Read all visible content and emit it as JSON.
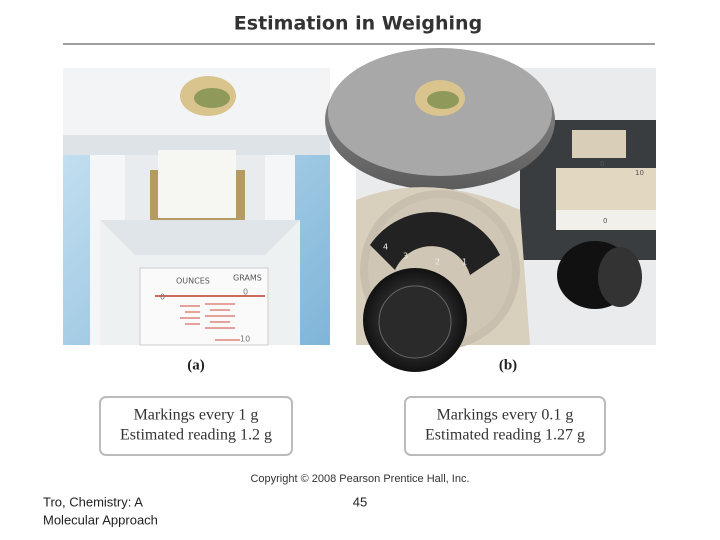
{
  "title": "Estimation in Weighing",
  "panels": [
    {
      "caption": "(a)",
      "scale_units": [
        "OUNCES",
        "GRAMS"
      ],
      "scale_marks": [
        "0",
        "0",
        "10"
      ],
      "box": [
        "Markings every 1 g",
        "Estimated reading 1.2 g"
      ]
    },
    {
      "caption": "(b)",
      "slider_marks": [
        "0",
        "10",
        "0"
      ],
      "dial_marks": [
        "4",
        "3",
        "2",
        "1"
      ],
      "box": [
        "Markings every 0.1 g",
        "Estimated reading 1.27 g"
      ]
    }
  ],
  "copyright": "Copyright © 2008 Pearson Prentice Hall, Inc.",
  "footer": {
    "source": [
      "Tro, Chemistry: A",
      "Molecular Approach"
    ],
    "page": "45"
  }
}
